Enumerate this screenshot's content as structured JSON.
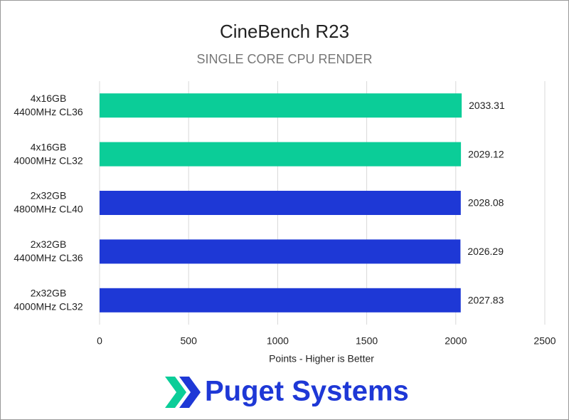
{
  "chart_data": {
    "type": "hbar",
    "title": "CineBench R23",
    "subtitle": "SINGLE CORE CPU RENDER",
    "categories": [
      [
        "4x16GB",
        "4400MHz CL36"
      ],
      [
        "4x16GB",
        "4000MHz CL32"
      ],
      [
        "2x32GB",
        "4800MHz CL40"
      ],
      [
        "2x32GB",
        "4400MHz CL36"
      ],
      [
        "2x32GB",
        "4000MHz CL32"
      ]
    ],
    "values": [
      2033.31,
      2029.12,
      2028.08,
      2026.29,
      2027.83
    ],
    "colors": [
      "#0bcd98",
      "#0bcd98",
      "#1e38d6",
      "#1e38d6",
      "#1e38d6"
    ],
    "xlim": [
      0,
      2500
    ],
    "xticks": [
      0,
      500,
      1000,
      1500,
      2000,
      2500
    ],
    "grid": true,
    "xlabel": "Points - Higher is Better"
  },
  "logo": "Puget Systems"
}
